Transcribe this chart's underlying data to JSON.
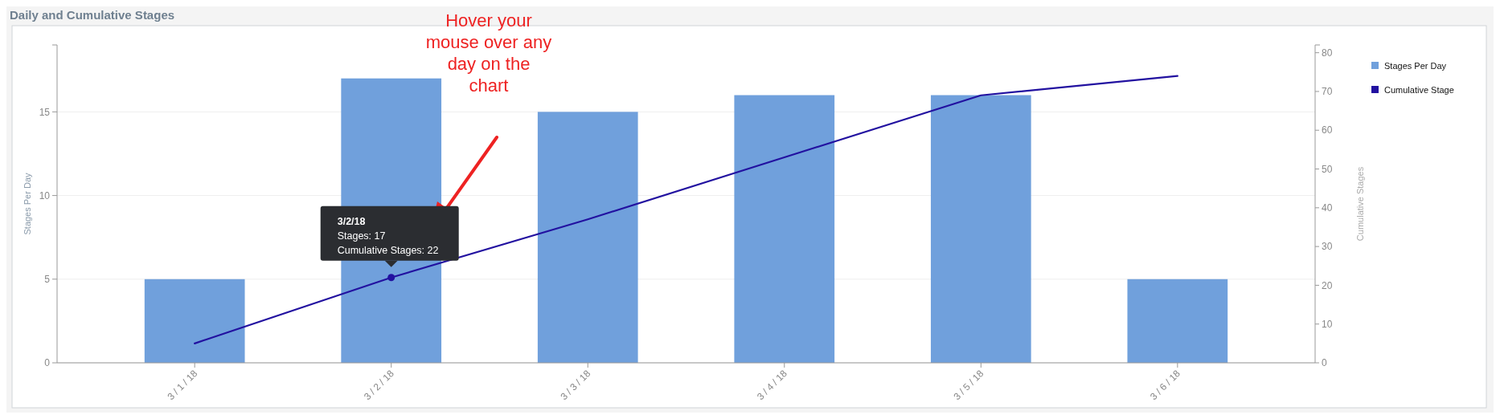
{
  "chart_data": {
    "type": "bar",
    "title": "Daily and Cumulative Stages",
    "categories": [
      "3 / 1 / 18",
      "3 / 2 / 18",
      "3 / 3 / 18",
      "3 / 4 / 18",
      "3 / 5 / 18",
      "3 / 6 / 18"
    ],
    "series": [
      {
        "name": "Stages Per Day",
        "color": "#70a0dc",
        "values": [
          5,
          17,
          15,
          16,
          16,
          5
        ]
      },
      {
        "name": "Cumulative Stage",
        "type": "line",
        "axis": "y2",
        "color": "#2211a0",
        "values": [
          5,
          22,
          37,
          53,
          69,
          74
        ]
      }
    ],
    "ylabel": "Stages Per Day",
    "y2label": "Cumulative Stages",
    "ylim": [
      0,
      19
    ],
    "yticks": [
      0,
      5,
      10,
      15
    ],
    "y2lim": [
      0,
      82
    ],
    "y2ticks": [
      0,
      10,
      20,
      30,
      40,
      50,
      60,
      70,
      80
    ],
    "grid": "y",
    "legend": "top right",
    "marker": "none",
    "line_style": "solid",
    "annotations": [
      "Hover your mouse over any day on the chart",
      "3/2/18",
      "Stages: 17",
      "Cumulative Stages: 22"
    ]
  }
}
